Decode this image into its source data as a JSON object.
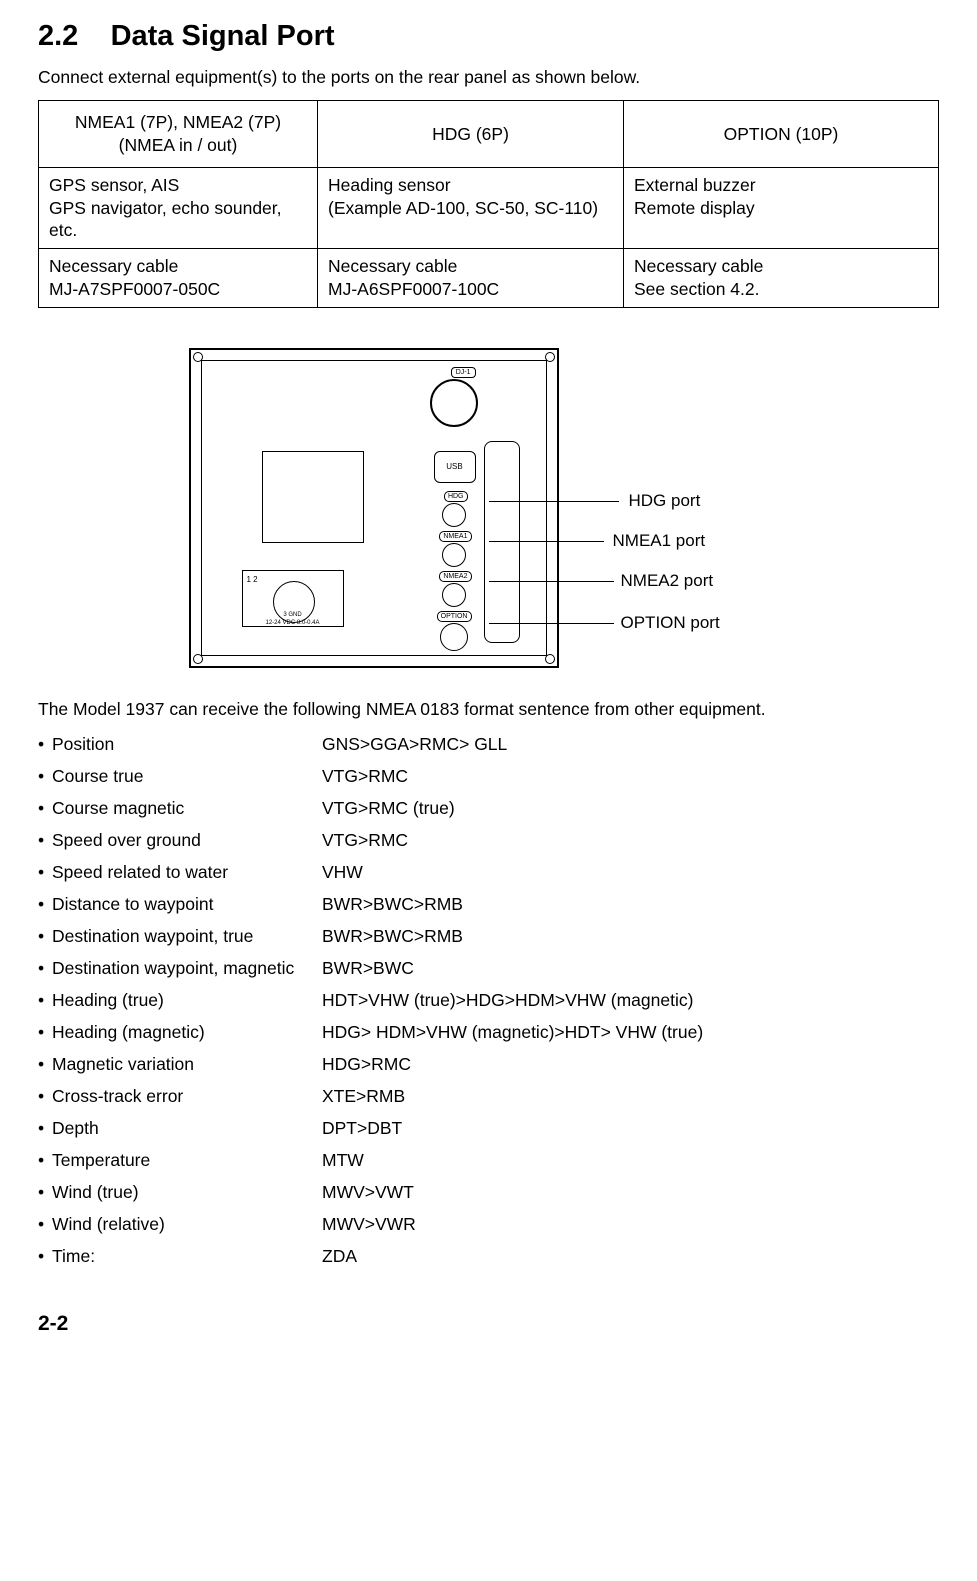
{
  "section_number": "2.2",
  "section_title": "Data Signal Port",
  "intro": "Connect external equipment(s) to the ports on the rear panel as shown below.",
  "table": {
    "headers": [
      "NMEA1 (7P), NMEA2 (7P)\n(NMEA in / out)",
      "HDG (6P)",
      "OPTION (10P)"
    ],
    "row_equipment": [
      "GPS sensor, AIS\nGPS navigator, echo sounder, etc.",
      "Heading sensor\n(Example AD-100, SC-50, SC-110)",
      "External buzzer\nRemote display"
    ],
    "row_cable": [
      "Necessary cable\n MJ-A7SPF0007-050C",
      "Necessary cable\nMJ-A6SPF0007-100C",
      "Necessary cable\nSee section 4.2."
    ]
  },
  "diagram": {
    "dj1": "DJ-1",
    "usb": "USB",
    "hdg": "HDG",
    "nmea1": "NMEA1",
    "nmea2": "NMEA2",
    "option": "OPTION",
    "pwr_pins": "1  2",
    "pwr_gnd": "3  GND",
    "pwr_spec": "12-24 VDC 8.0-0.4A",
    "callouts": {
      "hdg": "HDG port",
      "nmea1": "NMEA1 port",
      "nmea2": "NMEA2 port",
      "option": "OPTION port"
    }
  },
  "sentence_intro": "The Model 1937 can receive the following NMEA 0183 format sentence from other equipment.",
  "sentences": [
    {
      "label": "Position",
      "value": "GNS>GGA>RMC> GLL"
    },
    {
      "label": "Course true",
      "value": "VTG>RMC"
    },
    {
      "label": "Course magnetic",
      "value": "VTG>RMC (true)"
    },
    {
      "label": "Speed over ground",
      "value": "VTG>RMC"
    },
    {
      "label": "Speed related to water",
      "value": "VHW"
    },
    {
      "label": "Distance to waypoint",
      "value": "BWR>BWC>RMB"
    },
    {
      "label": "Destination waypoint, true",
      "value": "BWR>BWC>RMB"
    },
    {
      "label": "Destination waypoint, magnetic",
      "value": "BWR>BWC"
    },
    {
      "label": "Heading (true)",
      "value": "HDT>VHW (true)>HDG>HDM>VHW (magnetic)"
    },
    {
      "label": "Heading (magnetic)",
      "value": "HDG> HDM>VHW (magnetic)>HDT> VHW (true)"
    },
    {
      "label": "Magnetic variation",
      "value": "HDG>RMC"
    },
    {
      "label": "Cross-track error",
      "value": "XTE>RMB"
    },
    {
      "label": "Depth",
      "value": "DPT>DBT"
    },
    {
      "label": "Temperature",
      "value": "MTW"
    },
    {
      "label": "Wind (true)",
      "value": "MWV>VWT"
    },
    {
      "label": "Wind (relative)",
      "value": "MWV>VWR"
    },
    {
      "label": "Time:",
      "value": "ZDA"
    }
  ],
  "page_number": "2-2"
}
